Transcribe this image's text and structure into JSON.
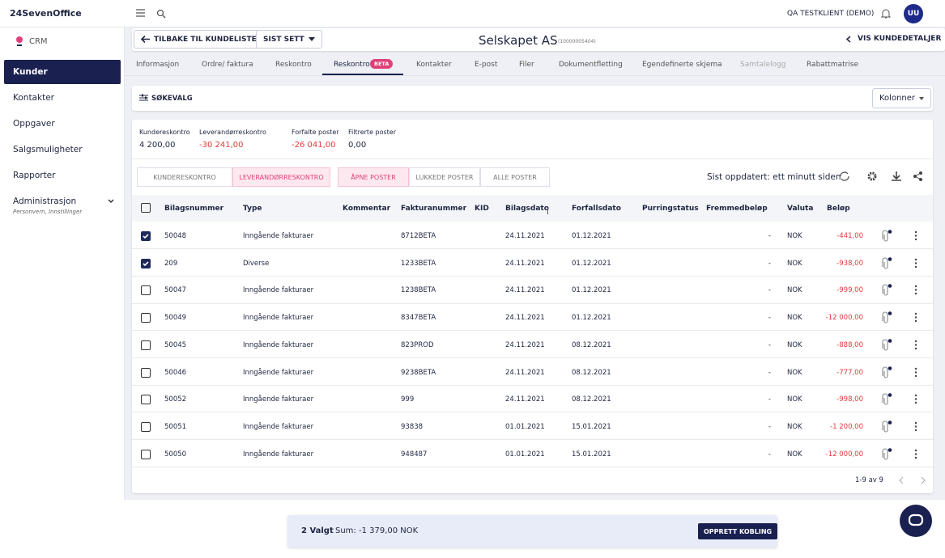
{
  "topbar": {
    "logo": "24SevenOffice",
    "client": "QA TESTKLIENT (DEMO)",
    "avatar": "UU"
  },
  "sidebar": {
    "module": "CRM",
    "items": [
      {
        "label": "Kunder",
        "active": true
      },
      {
        "label": "Kontakter"
      },
      {
        "label": "Oppgaver"
      },
      {
        "label": "Salgsmuligheter"
      },
      {
        "label": "Rapporter"
      },
      {
        "label": "Administrasjon",
        "sub": "Personvern, Innstillinger"
      }
    ]
  },
  "header": {
    "back": "TILBAKE TIL KUNDELISTE",
    "recent": "SIST SETT",
    "title": "Selskapet AS",
    "customer_no": "(10000005404)",
    "details": "VIS KUNDEDETALJER"
  },
  "tabs": [
    {
      "label": "Informasjon"
    },
    {
      "label": "Ordre/ faktura"
    },
    {
      "label": "Reskontro"
    },
    {
      "label": "Reskontro",
      "badge": "BETA",
      "active": true
    },
    {
      "label": "Kontakter"
    },
    {
      "label": "E-post"
    },
    {
      "label": "Filer"
    },
    {
      "label": "Dokumentfletting"
    },
    {
      "label": "Egendefinerte skjema"
    },
    {
      "label": "Samtalelogg",
      "disabled": true
    },
    {
      "label": "Rabattmatrise"
    }
  ],
  "search": {
    "label": "SØKEVALG",
    "columns": "Kolonner"
  },
  "summary": [
    {
      "label": "Kundereskontro",
      "value": "4 200,00"
    },
    {
      "label": "Leverandørreskontro",
      "value": "-30 241,00",
      "negative": true
    },
    {
      "label": "Forfalte poster",
      "value": "-26 041,00",
      "negative": true
    },
    {
      "label": "Filtrerte poster",
      "value": "0,00"
    }
  ],
  "ledger_toggle": [
    {
      "label": "KUNDERESKONTRO"
    },
    {
      "label": "LEVERANDØRRESKONTRO",
      "active": true
    }
  ],
  "status_toggle": [
    {
      "label": "ÅPNE POSTER",
      "active": true
    },
    {
      "label": "LUKKEDE POSTER"
    },
    {
      "label": "ALLE POSTER"
    }
  ],
  "updated": "Sist oppdatert: ett minutt siden",
  "table": {
    "columns": [
      "Bilagsnummer",
      "Type",
      "Kommentar",
      "Fakturanummer",
      "KID",
      "Bilagsdato",
      "Forfallsdato",
      "Purringstatus",
      "Fremmedbeløp",
      "Valuta",
      "Beløp"
    ],
    "rows": [
      {
        "checked": true,
        "bilagsnummer": "50048",
        "type": "Inngående fakturaer",
        "fakturanummer": "8712BETA",
        "bilagsdato": "24.11.2021",
        "forfallsdato": "01.12.2021",
        "fremmedbelop": "-",
        "valuta": "NOK",
        "belop": "-441,00"
      },
      {
        "checked": true,
        "bilagsnummer": "209",
        "type": "Diverse",
        "fakturanummer": "1233BETA",
        "bilagsdato": "24.11.2021",
        "forfallsdato": "01.12.2021",
        "fremmedbelop": "-",
        "valuta": "NOK",
        "belop": "-938,00"
      },
      {
        "checked": false,
        "bilagsnummer": "50047",
        "type": "Inngående fakturaer",
        "fakturanummer": "1238BETA",
        "bilagsdato": "24.11.2021",
        "forfallsdato": "01.12.2021",
        "fremmedbelop": "-",
        "valuta": "NOK",
        "belop": "-999,00"
      },
      {
        "checked": false,
        "bilagsnummer": "50049",
        "type": "Inngående fakturaer",
        "fakturanummer": "8347BETA",
        "bilagsdato": "24.11.2021",
        "forfallsdato": "01.12.2021",
        "fremmedbelop": "-",
        "valuta": "NOK",
        "belop": "-12 000,00"
      },
      {
        "checked": false,
        "bilagsnummer": "50045",
        "type": "Inngående fakturaer",
        "fakturanummer": "823PROD",
        "bilagsdato": "24.11.2021",
        "forfallsdato": "08.12.2021",
        "fremmedbelop": "-",
        "valuta": "NOK",
        "belop": "-888,00"
      },
      {
        "checked": false,
        "bilagsnummer": "50046",
        "type": "Inngående fakturaer",
        "fakturanummer": "9238BETA",
        "bilagsdato": "24.11.2021",
        "forfallsdato": "08.12.2021",
        "fremmedbelop": "-",
        "valuta": "NOK",
        "belop": "-777,00"
      },
      {
        "checked": false,
        "bilagsnummer": "50052",
        "type": "Inngående fakturaer",
        "fakturanummer": "999",
        "bilagsdato": "24.11.2021",
        "forfallsdato": "08.12.2021",
        "fremmedbelop": "-",
        "valuta": "NOK",
        "belop": "-998,00"
      },
      {
        "checked": false,
        "bilagsnummer": "50051",
        "type": "Inngående fakturaer",
        "fakturanummer": "93838",
        "bilagsdato": "01.01.2021",
        "forfallsdato": "15.01.2021",
        "fremmedbelop": "-",
        "valuta": "NOK",
        "belop": "-1 200,00"
      },
      {
        "checked": false,
        "bilagsnummer": "50050",
        "type": "Inngående fakturaer",
        "fakturanummer": "948487",
        "bilagsdato": "01.01.2021",
        "forfallsdato": "15.01.2021",
        "fremmedbelop": "-",
        "valuta": "NOK",
        "belop": "-12 000,00"
      }
    ],
    "pagination": "1-9 av 9"
  },
  "footer": {
    "selected": "2 Valgt",
    "sum": "Sum: -1 379,00 NOK",
    "action": "OPPRETT KOBLING"
  }
}
